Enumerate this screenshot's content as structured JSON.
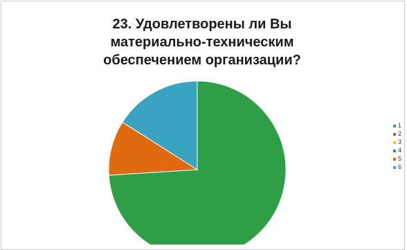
{
  "chart_data": {
    "type": "pie",
    "title": "23. Удовлетворены ли Вы материально-техническим обеспечением организации?",
    "title_lines": [
      "23. Удовлетворены ли Вы",
      "материально-техническим",
      "обеспечением организации?"
    ],
    "categories": [
      "1",
      "2",
      "3",
      "4",
      "5",
      "6"
    ],
    "values": [
      0,
      0,
      0,
      74,
      10,
      16
    ],
    "colors": [
      "#4f81bd",
      "#c0504d",
      "#f0c020",
      "#2e9e47",
      "#e06a10",
      "#3aa3bf"
    ],
    "legend_position": "right",
    "start_angle_deg": 0,
    "direction": "clockwise"
  }
}
